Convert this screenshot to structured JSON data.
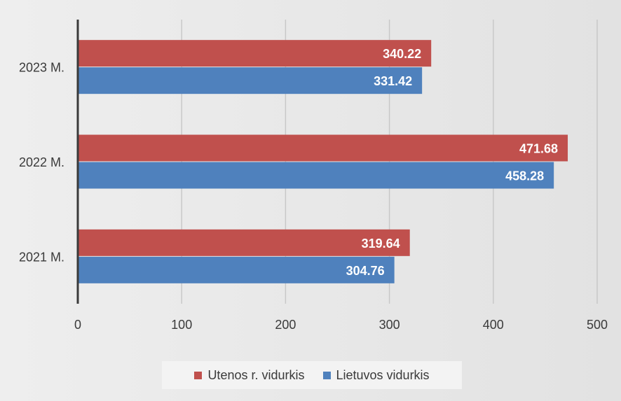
{
  "chart_data": {
    "type": "bar",
    "orientation": "horizontal",
    "categories": [
      "2023 M.",
      "2022 M.",
      "2021 M."
    ],
    "series": [
      {
        "name": "Utenos r. vidurkis",
        "color": "#c0504d",
        "values": [
          340.22,
          471.68,
          319.64
        ],
        "labels": [
          "340.22",
          "471.68",
          "319.64"
        ]
      },
      {
        "name": "Lietuvos vidurkis",
        "color": "#4f81bd",
        "values": [
          331.42,
          458.28,
          304.76
        ],
        "labels": [
          "331.42",
          "458.28",
          "304.76"
        ]
      }
    ],
    "xlim": [
      0,
      500
    ],
    "xticks": [
      0,
      100,
      200,
      300,
      400,
      500
    ],
    "xtick_labels": [
      "0",
      "100",
      "200",
      "300",
      "400",
      "500"
    ],
    "grid": true,
    "legend_position": "bottom",
    "title": "",
    "xlabel": "",
    "ylabel": ""
  }
}
